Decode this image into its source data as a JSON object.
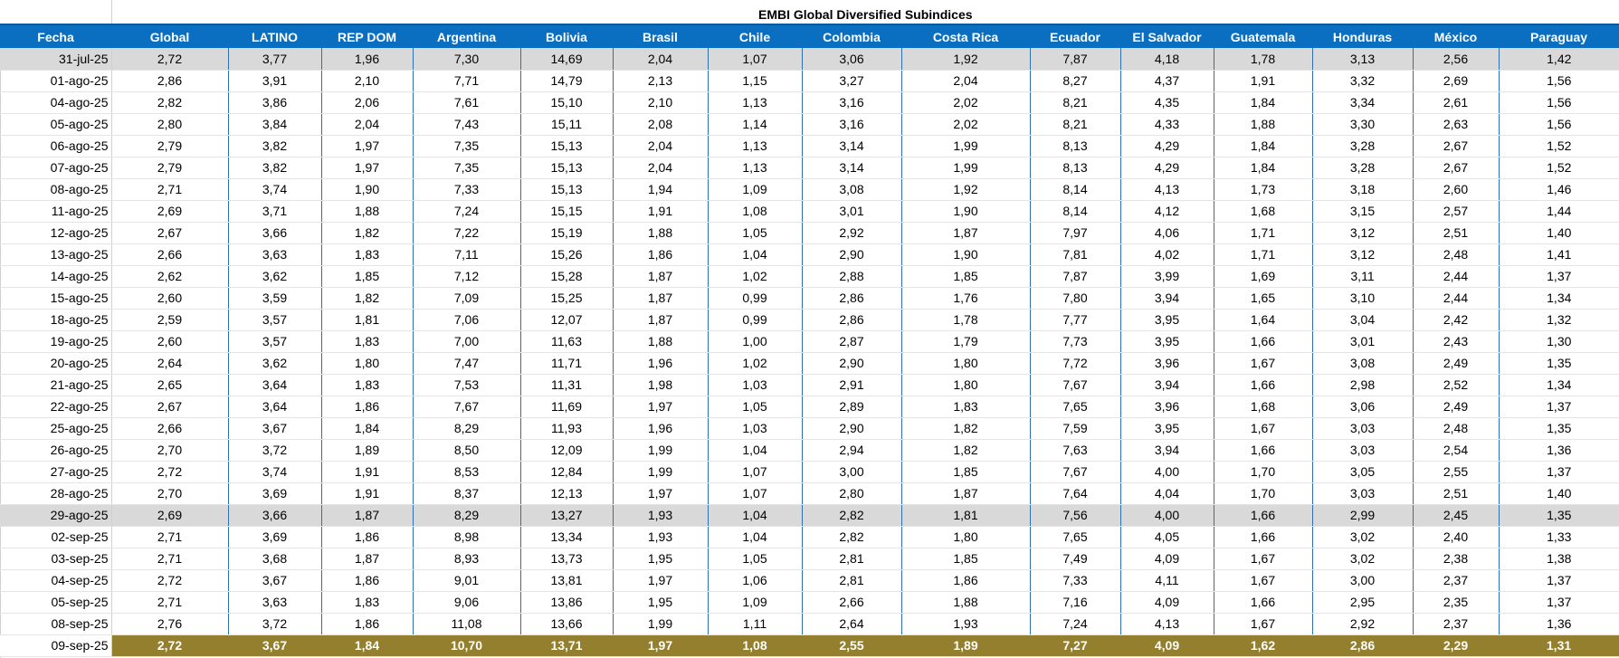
{
  "sheet": {
    "title": "EMBI Global Diversified Subindices",
    "columns": [
      "Fecha",
      "Global",
      "LATINO",
      "REP DOM",
      "Argentina",
      "Bolivia",
      "Brasil",
      "Chile",
      "Colombia",
      "Costa Rica",
      "Ecuador",
      "El Salvador",
      "Guatemala",
      "Honduras",
      "México",
      "Paraguay"
    ],
    "rows": [
      {
        "date": "31-jul-25",
        "values": [
          "2,72",
          "3,77",
          "1,96",
          "7,30",
          "14,69",
          "2,04",
          "1,07",
          "3,06",
          "1,92",
          "7,87",
          "4,18",
          "1,78",
          "3,13",
          "2,56",
          "1,42"
        ],
        "style": "shaded"
      },
      {
        "date": "01-ago-25",
        "values": [
          "2,86",
          "3,91",
          "2,10",
          "7,71",
          "14,79",
          "2,13",
          "1,15",
          "3,27",
          "2,04",
          "8,27",
          "4,37",
          "1,91",
          "3,32",
          "2,69",
          "1,56"
        ],
        "style": "normal"
      },
      {
        "date": "04-ago-25",
        "values": [
          "2,82",
          "3,86",
          "2,06",
          "7,61",
          "15,10",
          "2,10",
          "1,13",
          "3,16",
          "2,02",
          "8,21",
          "4,35",
          "1,84",
          "3,34",
          "2,61",
          "1,56"
        ],
        "style": "normal"
      },
      {
        "date": "05-ago-25",
        "values": [
          "2,80",
          "3,84",
          "2,04",
          "7,43",
          "15,11",
          "2,08",
          "1,14",
          "3,16",
          "2,02",
          "8,21",
          "4,33",
          "1,88",
          "3,30",
          "2,63",
          "1,56"
        ],
        "style": "normal"
      },
      {
        "date": "06-ago-25",
        "values": [
          "2,79",
          "3,82",
          "1,97",
          "7,35",
          "15,13",
          "2,04",
          "1,13",
          "3,14",
          "1,99",
          "8,13",
          "4,29",
          "1,84",
          "3,28",
          "2,67",
          "1,52"
        ],
        "style": "normal"
      },
      {
        "date": "07-ago-25",
        "values": [
          "2,79",
          "3,82",
          "1,97",
          "7,35",
          "15,13",
          "2,04",
          "1,13",
          "3,14",
          "1,99",
          "8,13",
          "4,29",
          "1,84",
          "3,28",
          "2,67",
          "1,52"
        ],
        "style": "normal"
      },
      {
        "date": "08-ago-25",
        "values": [
          "2,71",
          "3,74",
          "1,90",
          "7,33",
          "15,13",
          "1,94",
          "1,09",
          "3,08",
          "1,92",
          "8,14",
          "4,13",
          "1,73",
          "3,18",
          "2,60",
          "1,46"
        ],
        "style": "normal"
      },
      {
        "date": "11-ago-25",
        "values": [
          "2,69",
          "3,71",
          "1,88",
          "7,24",
          "15,15",
          "1,91",
          "1,08",
          "3,01",
          "1,90",
          "8,14",
          "4,12",
          "1,68",
          "3,15",
          "2,57",
          "1,44"
        ],
        "style": "normal"
      },
      {
        "date": "12-ago-25",
        "values": [
          "2,67",
          "3,66",
          "1,82",
          "7,22",
          "15,19",
          "1,88",
          "1,05",
          "2,92",
          "1,87",
          "7,97",
          "4,06",
          "1,71",
          "3,12",
          "2,51",
          "1,40"
        ],
        "style": "normal"
      },
      {
        "date": "13-ago-25",
        "values": [
          "2,66",
          "3,63",
          "1,83",
          "7,11",
          "15,26",
          "1,86",
          "1,04",
          "2,90",
          "1,90",
          "7,81",
          "4,02",
          "1,71",
          "3,12",
          "2,48",
          "1,41"
        ],
        "style": "normal"
      },
      {
        "date": "14-ago-25",
        "values": [
          "2,62",
          "3,62",
          "1,85",
          "7,12",
          "15,28",
          "1,87",
          "1,02",
          "2,88",
          "1,85",
          "7,87",
          "3,99",
          "1,69",
          "3,11",
          "2,44",
          "1,37"
        ],
        "style": "normal"
      },
      {
        "date": "15-ago-25",
        "values": [
          "2,60",
          "3,59",
          "1,82",
          "7,09",
          "15,25",
          "1,87",
          "0,99",
          "2,86",
          "1,76",
          "7,80",
          "3,94",
          "1,65",
          "3,10",
          "2,44",
          "1,34"
        ],
        "style": "normal"
      },
      {
        "date": "18-ago-25",
        "values": [
          "2,59",
          "3,57",
          "1,81",
          "7,06",
          "12,07",
          "1,87",
          "0,99",
          "2,86",
          "1,78",
          "7,77",
          "3,95",
          "1,64",
          "3,04",
          "2,42",
          "1,32"
        ],
        "style": "normal"
      },
      {
        "date": "19-ago-25",
        "values": [
          "2,60",
          "3,57",
          "1,83",
          "7,00",
          "11,63",
          "1,88",
          "1,00",
          "2,87",
          "1,79",
          "7,73",
          "3,95",
          "1,66",
          "3,01",
          "2,43",
          "1,30"
        ],
        "style": "normal"
      },
      {
        "date": "20-ago-25",
        "values": [
          "2,64",
          "3,62",
          "1,80",
          "7,47",
          "11,71",
          "1,96",
          "1,02",
          "2,90",
          "1,80",
          "7,72",
          "3,96",
          "1,67",
          "3,08",
          "2,49",
          "1,35"
        ],
        "style": "normal"
      },
      {
        "date": "21-ago-25",
        "values": [
          "2,65",
          "3,64",
          "1,83",
          "7,53",
          "11,31",
          "1,98",
          "1,03",
          "2,91",
          "1,80",
          "7,67",
          "3,94",
          "1,66",
          "2,98",
          "2,52",
          "1,34"
        ],
        "style": "normal"
      },
      {
        "date": "22-ago-25",
        "values": [
          "2,67",
          "3,64",
          "1,86",
          "7,67",
          "11,69",
          "1,97",
          "1,05",
          "2,89",
          "1,83",
          "7,65",
          "3,96",
          "1,68",
          "3,06",
          "2,49",
          "1,37"
        ],
        "style": "normal"
      },
      {
        "date": "25-ago-25",
        "values": [
          "2,66",
          "3,67",
          "1,84",
          "8,29",
          "11,93",
          "1,96",
          "1,03",
          "2,90",
          "1,82",
          "7,59",
          "3,95",
          "1,67",
          "3,03",
          "2,48",
          "1,35"
        ],
        "style": "normal"
      },
      {
        "date": "26-ago-25",
        "values": [
          "2,70",
          "3,72",
          "1,89",
          "8,50",
          "12,09",
          "1,99",
          "1,04",
          "2,94",
          "1,82",
          "7,63",
          "3,94",
          "1,66",
          "3,03",
          "2,54",
          "1,36"
        ],
        "style": "normal"
      },
      {
        "date": "27-ago-25",
        "values": [
          "2,72",
          "3,74",
          "1,91",
          "8,53",
          "12,84",
          "1,99",
          "1,07",
          "3,00",
          "1,85",
          "7,67",
          "4,00",
          "1,70",
          "3,05",
          "2,55",
          "1,37"
        ],
        "style": "normal"
      },
      {
        "date": "28-ago-25",
        "values": [
          "2,70",
          "3,69",
          "1,91",
          "8,37",
          "12,13",
          "1,97",
          "1,07",
          "2,80",
          "1,87",
          "7,64",
          "4,04",
          "1,70",
          "3,03",
          "2,51",
          "1,40"
        ],
        "style": "normal"
      },
      {
        "date": "29-ago-25",
        "values": [
          "2,69",
          "3,66",
          "1,87",
          "8,29",
          "13,27",
          "1,93",
          "1,04",
          "2,82",
          "1,81",
          "7,56",
          "4,00",
          "1,66",
          "2,99",
          "2,45",
          "1,35"
        ],
        "style": "shaded"
      },
      {
        "date": "02-sep-25",
        "values": [
          "2,71",
          "3,69",
          "1,86",
          "8,98",
          "13,34",
          "1,93",
          "1,04",
          "2,82",
          "1,80",
          "7,65",
          "4,05",
          "1,66",
          "3,02",
          "2,40",
          "1,33"
        ],
        "style": "normal"
      },
      {
        "date": "03-sep-25",
        "values": [
          "2,71",
          "3,68",
          "1,87",
          "8,93",
          "13,73",
          "1,95",
          "1,05",
          "2,81",
          "1,85",
          "7,49",
          "4,09",
          "1,67",
          "3,02",
          "2,38",
          "1,38"
        ],
        "style": "normal"
      },
      {
        "date": "04-sep-25",
        "values": [
          "2,72",
          "3,67",
          "1,86",
          "9,01",
          "13,81",
          "1,97",
          "1,06",
          "2,81",
          "1,86",
          "7,33",
          "4,11",
          "1,67",
          "3,00",
          "2,37",
          "1,37"
        ],
        "style": "normal"
      },
      {
        "date": "05-sep-25",
        "values": [
          "2,71",
          "3,63",
          "1,83",
          "9,06",
          "13,86",
          "1,95",
          "1,09",
          "2,66",
          "1,88",
          "7,16",
          "4,09",
          "1,66",
          "2,95",
          "2,35",
          "1,37"
        ],
        "style": "normal"
      },
      {
        "date": "08-sep-25",
        "values": [
          "2,76",
          "3,72",
          "1,86",
          "11,08",
          "13,66",
          "1,99",
          "1,11",
          "2,64",
          "1,93",
          "7,24",
          "4,13",
          "1,67",
          "2,92",
          "2,37",
          "1,36"
        ],
        "style": "normal"
      },
      {
        "date": "09-sep-25",
        "values": [
          "2,72",
          "3,67",
          "1,84",
          "10,70",
          "13,71",
          "1,97",
          "1,08",
          "2,55",
          "1,89",
          "7,27",
          "4,09",
          "1,62",
          "2,86",
          "2,29",
          "1,31"
        ],
        "style": "highlight"
      }
    ],
    "colors": {
      "header_bg": "#0b6fc1",
      "shaded_bg": "#d9d9d9",
      "highlight_bg": "#937f2e",
      "grid_line": "#2d6fb0"
    }
  }
}
